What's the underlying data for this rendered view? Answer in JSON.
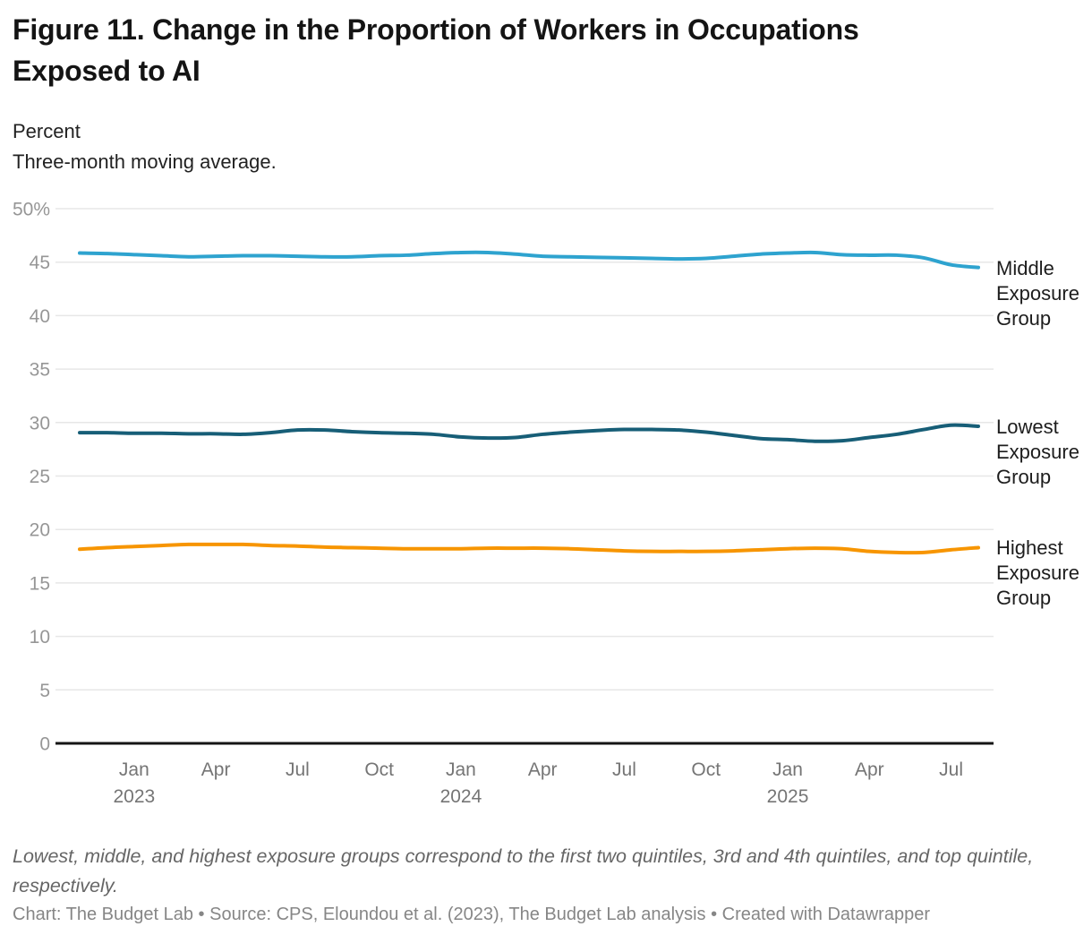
{
  "header": {
    "title": "Figure 11. Change in the Proportion of Workers in Occupations Exposed to AI",
    "subtitle_lines": [
      "Percent",
      "Three-month moving average."
    ]
  },
  "footer": {
    "note": "Lowest, middle, and highest exposure groups correspond to the first two quintiles, 3rd and 4th quintiles, and top quintile, respectively.",
    "credit": "Chart: The Budget Lab • Source: CPS, Eloundou et al. (2023), The Budget Lab analysis • Created with Datawrapper"
  },
  "colors": {
    "middle_line": "#2EA3CF",
    "lowest_line": "#175E77",
    "highest_line": "#F79500",
    "gridline": "#e7e7e7",
    "axis_line": "#141414",
    "y_tick_text": "#969696",
    "x_tick_text": "#757575",
    "label_text": "#1d1d1d"
  },
  "chart_data": {
    "type": "line",
    "title": "Figure 11. Change in the Proportion of Workers in Occupations Exposed to AI",
    "ylabel": "Percent",
    "note": "Three-month moving average.",
    "ylim": [
      0,
      50
    ],
    "grid": "horizontal",
    "legend_position": "right-annotations",
    "y_ticks": [
      0,
      5,
      10,
      15,
      20,
      25,
      30,
      35,
      40,
      45,
      50
    ],
    "y_tick_labels": [
      "0",
      "5",
      "10",
      "15",
      "20",
      "25",
      "30",
      "35",
      "40",
      "45",
      "50%"
    ],
    "x": [
      "2022-11",
      "2022-12",
      "2023-01",
      "2023-02",
      "2023-03",
      "2023-04",
      "2023-05",
      "2023-06",
      "2023-07",
      "2023-08",
      "2023-09",
      "2023-10",
      "2023-11",
      "2023-12",
      "2024-01",
      "2024-02",
      "2024-03",
      "2024-04",
      "2024-05",
      "2024-06",
      "2024-07",
      "2024-08",
      "2024-09",
      "2024-10",
      "2024-11",
      "2024-12",
      "2025-01",
      "2025-02",
      "2025-03",
      "2025-04",
      "2025-05",
      "2025-06",
      "2025-07",
      "2025-08"
    ],
    "x_ticks": [
      {
        "index": 2,
        "label": "Jan",
        "year": "2023"
      },
      {
        "index": 5,
        "label": "Apr",
        "year": ""
      },
      {
        "index": 8,
        "label": "Jul",
        "year": ""
      },
      {
        "index": 11,
        "label": "Oct",
        "year": ""
      },
      {
        "index": 14,
        "label": "Jan",
        "year": "2024"
      },
      {
        "index": 17,
        "label": "Apr",
        "year": ""
      },
      {
        "index": 20,
        "label": "Jul",
        "year": ""
      },
      {
        "index": 23,
        "label": "Oct",
        "year": ""
      },
      {
        "index": 26,
        "label": "Jan",
        "year": "2025"
      },
      {
        "index": 29,
        "label": "Apr",
        "year": ""
      },
      {
        "index": 32,
        "label": "Jul",
        "year": ""
      }
    ],
    "series": [
      {
        "name": "Middle Exposure Group",
        "label_lines": "Middle\nExposure\nGroup",
        "color": "#2EA3CF",
        "values": [
          45.85,
          45.8,
          45.7,
          45.6,
          45.5,
          45.55,
          45.6,
          45.6,
          45.55,
          45.5,
          45.5,
          45.6,
          45.65,
          45.8,
          45.9,
          45.9,
          45.75,
          45.55,
          45.5,
          45.45,
          45.4,
          45.35,
          45.3,
          45.35,
          45.55,
          45.75,
          45.85,
          45.9,
          45.7,
          45.65,
          45.65,
          45.4,
          44.75,
          44.5
        ]
      },
      {
        "name": "Lowest Exposure Group",
        "label_lines": "Lowest\nExposure\nGroup",
        "color": "#175E77",
        "values": [
          29.05,
          29.05,
          29.0,
          29.0,
          28.95,
          28.95,
          28.9,
          29.05,
          29.3,
          29.3,
          29.15,
          29.05,
          29.0,
          28.9,
          28.65,
          28.55,
          28.6,
          28.9,
          29.1,
          29.25,
          29.35,
          29.35,
          29.3,
          29.1,
          28.8,
          28.5,
          28.4,
          28.25,
          28.3,
          28.6,
          28.9,
          29.35,
          29.75,
          29.65
        ]
      },
      {
        "name": "Highest Exposure Group",
        "label_lines": "Highest\nExposure\nGroup",
        "color": "#F79500",
        "values": [
          18.15,
          18.3,
          18.4,
          18.5,
          18.6,
          18.6,
          18.6,
          18.5,
          18.45,
          18.35,
          18.3,
          18.25,
          18.2,
          18.2,
          18.2,
          18.25,
          18.25,
          18.25,
          18.2,
          18.1,
          18.0,
          17.95,
          17.95,
          17.95,
          18.0,
          18.1,
          18.2,
          18.25,
          18.2,
          17.95,
          17.85,
          17.85,
          18.1,
          18.3
        ]
      }
    ]
  }
}
